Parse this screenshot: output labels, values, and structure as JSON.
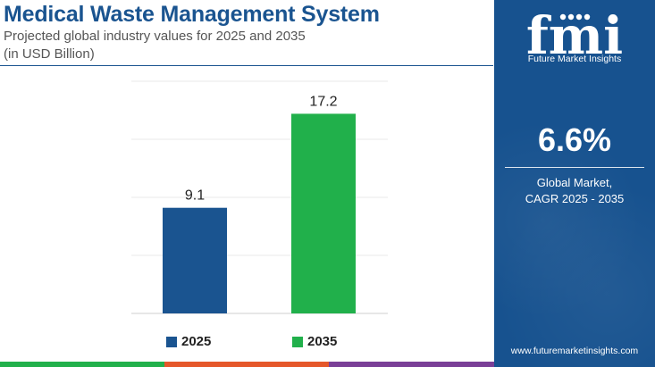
{
  "title": "Medical Waste Management System",
  "subtitle_line1": "Projected global industry values for 2025 and 2035",
  "subtitle_line2": "(in USD Billion)",
  "chart_data": {
    "type": "bar",
    "categories": [
      "2025",
      "2035"
    ],
    "values": [
      9.1,
      17.2
    ],
    "colors": [
      "#1a5490",
      "#21b04b"
    ],
    "data_labels": [
      "9.1",
      "17.2"
    ],
    "ylim": [
      0,
      20
    ],
    "grid": true,
    "legend": "bottom"
  },
  "legend": [
    {
      "label": "2025",
      "color": "#1a5490"
    },
    {
      "label": "2035",
      "color": "#21b04b"
    }
  ],
  "bottom_bar_colors": [
    "#21b04b",
    "#e5572a",
    "#7a3f97"
  ],
  "panel": {
    "logo_text": "fmi",
    "logo_tagline": "Future Market Insights",
    "cagr_value": "6.6%",
    "cagr_label_line1": "Global Market,",
    "cagr_label_line2": "CAGR 2025 - 2035",
    "url": "www.futuremarketinsights.com",
    "background_color": "#17528f"
  }
}
